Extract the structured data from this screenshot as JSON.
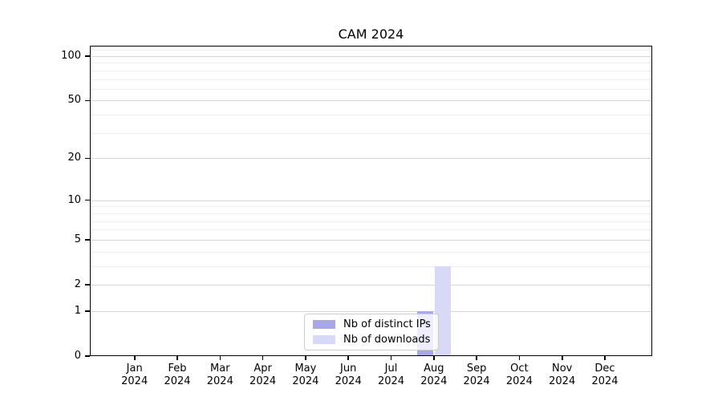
{
  "chart_data": {
    "type": "bar",
    "title": "CAM 2024",
    "categories": [
      "Jan",
      "Feb",
      "Mar",
      "Apr",
      "May",
      "Jun",
      "Jul",
      "Aug",
      "Sep",
      "Oct",
      "Nov",
      "Dec"
    ],
    "category_year": "2024",
    "series": [
      {
        "name": "Nb of distinct IPs",
        "color": "#a7a7ea",
        "values": [
          0,
          0,
          0,
          0,
          0,
          0,
          0,
          1,
          0,
          0,
          0,
          0
        ]
      },
      {
        "name": "Nb of downloads",
        "color": "#d8d8f7",
        "values": [
          0,
          0,
          0,
          0,
          0,
          0,
          0,
          3,
          0,
          0,
          0,
          0
        ]
      }
    ],
    "y_scale": "log1p",
    "y_axis": {
      "tick_labels": [
        "0",
        "1",
        "2",
        "5",
        "10",
        "20",
        "50",
        "100"
      ],
      "major_ticks": [
        0,
        1,
        2,
        5,
        10,
        20,
        50,
        100
      ],
      "minor_gridlines": [
        3,
        4,
        6,
        7,
        8,
        9,
        30,
        40,
        60,
        70,
        80,
        90,
        110
      ],
      "max": 117.5
    },
    "grid": "horizontal",
    "legend": {
      "position": "lower-center"
    },
    "colors": {
      "major_grid": "#d6d6d6",
      "minor_grid": "#eeeeee",
      "axis": "#000000",
      "background": "#ffffff"
    }
  }
}
